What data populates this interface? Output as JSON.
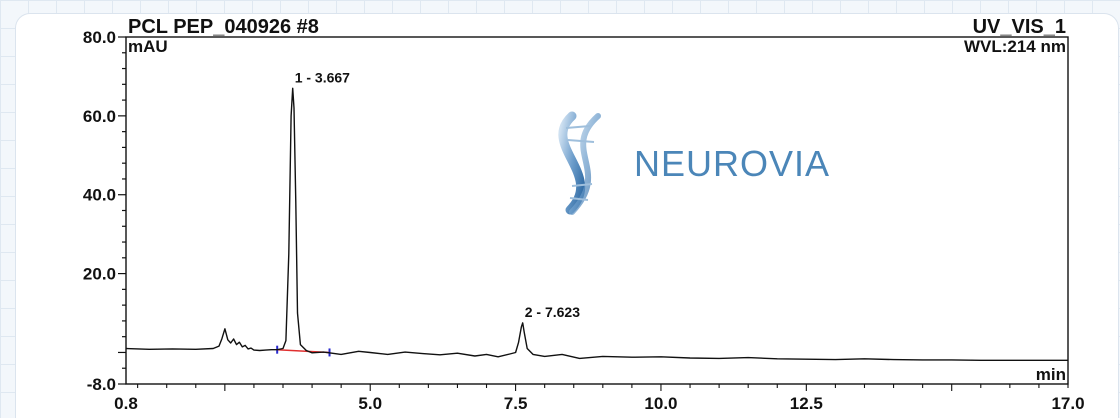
{
  "chart_data": {
    "type": "line",
    "title": "PCL PEP_040926 #8",
    "channel": "UV_VIS_1",
    "wavelength": "WVL:214 nm",
    "ylabel": "mAU",
    "xlabel": "min",
    "xlim": [
      0.8,
      17.0
    ],
    "ylim": [
      -8.0,
      80.0
    ],
    "x_ticks": [
      "0.8",
      "5.0",
      "7.5",
      "10.0",
      "12.5",
      "17.0"
    ],
    "y_ticks": [
      "80.0",
      "60.0",
      "40.0",
      "20.0",
      "-8.0"
    ],
    "peaks": [
      {
        "label": "1 - 3.667",
        "x": 3.667,
        "y": 67.0
      },
      {
        "label": "2 - 7.623",
        "x": 7.623,
        "y": 7.5
      }
    ],
    "series": [
      {
        "x": [
          0.8,
          1.2,
          1.6,
          2.0,
          2.3,
          2.4,
          2.45,
          2.5,
          2.55,
          2.6,
          2.65,
          2.7,
          2.75,
          2.8,
          2.85,
          2.9,
          2.95,
          3.0,
          3.1,
          3.2,
          3.3,
          3.4,
          3.5,
          3.55,
          3.6,
          3.64,
          3.667,
          3.69,
          3.72,
          3.75,
          3.8,
          3.9,
          4.0,
          4.2,
          4.5,
          4.8,
          5.0,
          5.3,
          5.6,
          5.9,
          6.2,
          6.5,
          6.8,
          7.0,
          7.2,
          7.4,
          7.5,
          7.55,
          7.6,
          7.623,
          7.65,
          7.7,
          7.8,
          8.0,
          8.3,
          8.6,
          9.0,
          9.5,
          10.0,
          10.5,
          11.0,
          11.5,
          12.0,
          12.5,
          13.0,
          13.5,
          14.0,
          14.5,
          15.0,
          15.5,
          16.0,
          16.5,
          17.0
        ],
        "y": [
          1.0,
          0.8,
          0.9,
          0.8,
          1.0,
          1.6,
          3.5,
          6.0,
          3.2,
          2.4,
          3.4,
          2.0,
          2.6,
          1.4,
          1.8,
          0.9,
          1.1,
          0.6,
          0.5,
          0.6,
          0.7,
          0.7,
          1.0,
          3.0,
          25.0,
          60.0,
          67.0,
          62.0,
          38.0,
          10.0,
          2.0,
          0.5,
          -0.1,
          0.1,
          -0.5,
          0.3,
          0.0,
          -0.5,
          0.1,
          -0.3,
          -0.6,
          -0.2,
          -0.9,
          -0.5,
          -1.1,
          -0.4,
          0.0,
          2.5,
          6.5,
          7.5,
          5.0,
          1.0,
          -0.5,
          -1.0,
          -0.5,
          -1.5,
          -1.0,
          -1.2,
          -1.1,
          -1.4,
          -1.5,
          -1.3,
          -1.6,
          -1.7,
          -1.8,
          -1.6,
          -1.8,
          -1.9,
          -1.9,
          -2.0,
          -2.0,
          -2.0,
          -2.0
        ]
      }
    ],
    "baseline": {
      "x": [
        3.4,
        4.3
      ],
      "y": [
        0.7,
        0.0
      ]
    },
    "grid": false,
    "legend": "none"
  },
  "watermark": {
    "brand_name": "NEUROVIA",
    "icon": "dna-helix-icon"
  },
  "colors": {
    "line": "#111111",
    "baseline": "#e03030",
    "brand": "#4b86b8",
    "marker": "#2a2ad0"
  }
}
